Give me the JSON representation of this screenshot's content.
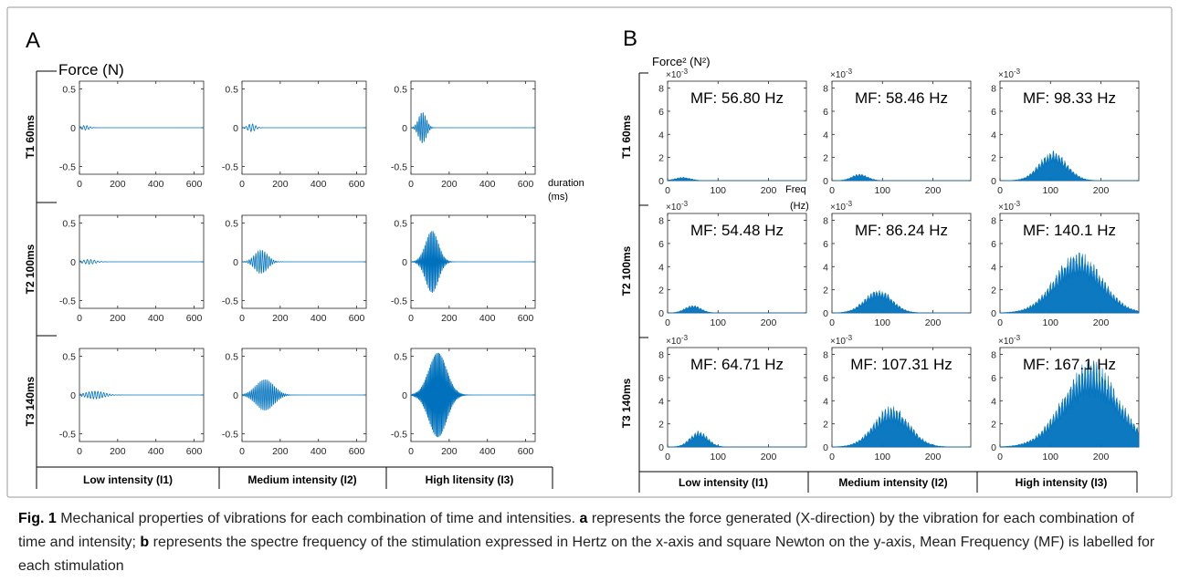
{
  "caption": {
    "fig_label": "Fig. 1",
    "text_1": " Mechanical properties of vibrations for each combination of time and intensities. ",
    "a_label": "a",
    "text_2": " represents the force generated (X-direction) by the vibration for each combination of time and intensity; ",
    "b_label": "b",
    "text_3": " represents the spectre frequency of the stimulation expressed in Hertz on the x-axis and square Newton on the y-axis, Mean Frequency (MF) is labelled for each stimulation"
  },
  "chart_data": [
    {
      "panel": "A",
      "type": "line",
      "ylabel": "Force (N)",
      "xlabel": "duration (ms)",
      "xlim": [
        0,
        650
      ],
      "ylim": [
        -0.6,
        0.6
      ],
      "xticks": [
        0,
        200,
        400,
        600
      ],
      "yticks": [
        0.5,
        0,
        -0.5
      ],
      "row_labels": [
        "T1 60ms",
        "T2 100ms",
        "T3 140ms"
      ],
      "col_labels": [
        "Low intensity (I1)",
        "Medium intensity (I2)",
        "High litensity (I3)"
      ],
      "color": "#0072BD",
      "grid": false,
      "series": [
        {
          "row": 0,
          "col": 0,
          "center_ms": 30,
          "duration_ms": 60,
          "amplitude": 0.03,
          "freq_hz": 56.8
        },
        {
          "row": 0,
          "col": 1,
          "center_ms": 50,
          "duration_ms": 60,
          "amplitude": 0.05,
          "freq_hz": 58.46
        },
        {
          "row": 0,
          "col": 2,
          "center_ms": 60,
          "duration_ms": 60,
          "amplitude": 0.2,
          "freq_hz": 98.33
        },
        {
          "row": 1,
          "col": 0,
          "center_ms": 50,
          "duration_ms": 100,
          "amplitude": 0.03,
          "freq_hz": 54.48
        },
        {
          "row": 1,
          "col": 1,
          "center_ms": 100,
          "duration_ms": 100,
          "amplitude": 0.15,
          "freq_hz": 86.24
        },
        {
          "row": 1,
          "col": 2,
          "center_ms": 110,
          "duration_ms": 100,
          "amplitude": 0.4,
          "freq_hz": 140.1
        },
        {
          "row": 2,
          "col": 0,
          "center_ms": 80,
          "duration_ms": 140,
          "amplitude": 0.05,
          "freq_hz": 64.71
        },
        {
          "row": 2,
          "col": 1,
          "center_ms": 120,
          "duration_ms": 140,
          "amplitude": 0.2,
          "freq_hz": 107.31
        },
        {
          "row": 2,
          "col": 2,
          "center_ms": 140,
          "duration_ms": 140,
          "amplitude": 0.55,
          "freq_hz": 167.1
        }
      ]
    },
    {
      "panel": "B",
      "type": "area",
      "ylabel": "Force² (N²)",
      "xlabel": "Freq (Hz)",
      "y_exponent": "×10-3",
      "xlim": [
        0,
        275
      ],
      "ylim": [
        0,
        8.6
      ],
      "xticks": [
        0,
        100,
        200
      ],
      "yticks": [
        0,
        2,
        4,
        6,
        8
      ],
      "row_labels": [
        "T1 60ms",
        "T2 100ms",
        "T3 140ms"
      ],
      "col_labels": [
        "Low intensity (I1)",
        "Medium intensity (I2)",
        "High intensity (I3)"
      ],
      "color": "#0072BD",
      "grid": false,
      "series": [
        {
          "row": 0,
          "col": 0,
          "mf_label": "MF: 56.80 Hz",
          "peak_hz": 30,
          "peak": 0.3,
          "width_hz": 40
        },
        {
          "row": 0,
          "col": 1,
          "mf_label": "MF: 58.46 Hz",
          "peak_hz": 55,
          "peak": 0.6,
          "width_hz": 40
        },
        {
          "row": 0,
          "col": 2,
          "mf_label": "MF: 98.33 Hz",
          "peak_hz": 105,
          "peak": 2.6,
          "width_hz": 70
        },
        {
          "row": 1,
          "col": 0,
          "mf_label": "MF: 54.48 Hz",
          "peak_hz": 50,
          "peak": 0.7,
          "width_hz": 40
        },
        {
          "row": 1,
          "col": 1,
          "mf_label": "MF: 86.24 Hz",
          "peak_hz": 92,
          "peak": 2.1,
          "width_hz": 70
        },
        {
          "row": 1,
          "col": 2,
          "mf_label": "MF: 140.1 Hz",
          "peak_hz": 155,
          "peak": 5.4,
          "width_hz": 120
        },
        {
          "row": 2,
          "col": 0,
          "mf_label": "MF: 64.71 Hz",
          "peak_hz": 62,
          "peak": 1.4,
          "width_hz": 45
        },
        {
          "row": 2,
          "col": 1,
          "mf_label": "MF: 107.31 Hz",
          "peak_hz": 118,
          "peak": 3.6,
          "width_hz": 90
        },
        {
          "row": 2,
          "col": 2,
          "mf_label": "MF: 167.1 Hz",
          "peak_hz": 180,
          "peak": 7.6,
          "width_hz": 140
        }
      ]
    }
  ]
}
